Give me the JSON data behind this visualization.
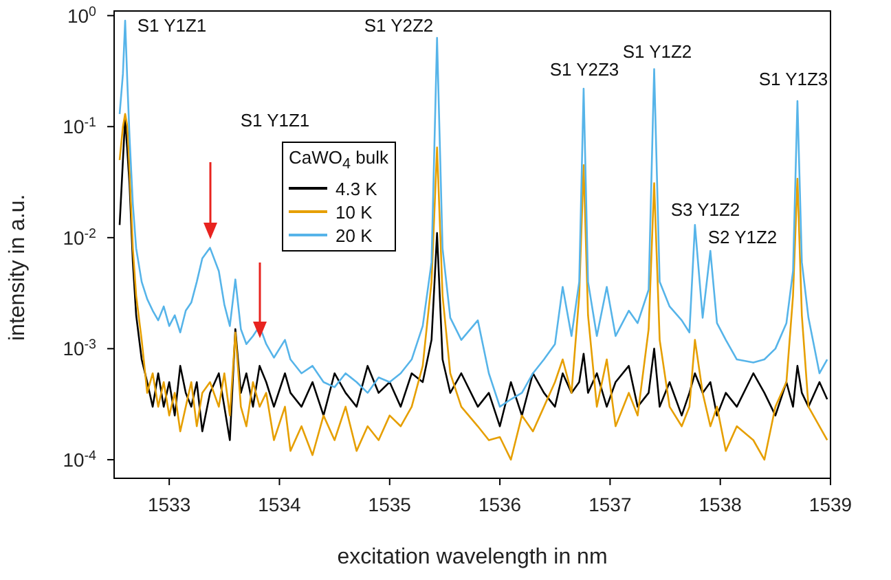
{
  "chart_data": {
    "type": "line",
    "xlabel": "excitation wavelength in nm",
    "ylabel": "intensity in a.u.",
    "legend_title": "CaWO$_{4}$ bulk",
    "legend": "top left",
    "log": "y",
    "grid": false,
    "marker": "none",
    "line_style": "solid",
    "xlim": [
      1532.5,
      1539
    ],
    "xticks": [
      1533,
      1534,
      1535,
      1536,
      1537,
      1538,
      1539
    ],
    "ylim": [
      6.8e-05,
      1.1
    ],
    "yticks": [
      {
        "value": 0.0001,
        "label": "10$^{-4}$"
      },
      {
        "value": 0.001,
        "label": "10$^{-3}$"
      },
      {
        "value": 0.01,
        "label": "10$^{-2}$"
      },
      {
        "value": 0.1,
        "label": "10$^{-1}$"
      },
      {
        "value": 1,
        "label": "10$^{0}$"
      }
    ],
    "x": [
      1532.55,
      1532.58,
      1532.6,
      1532.62,
      1532.64,
      1532.67,
      1532.7,
      1532.75,
      1532.8,
      1532.85,
      1532.9,
      1532.95,
      1533.0,
      1533.05,
      1533.1,
      1533.15,
      1533.2,
      1533.25,
      1533.3,
      1533.37,
      1533.45,
      1533.5,
      1533.55,
      1533.6,
      1533.65,
      1533.7,
      1533.76,
      1533.82,
      1533.88,
      1533.95,
      1534.05,
      1534.1,
      1534.2,
      1534.3,
      1534.4,
      1534.5,
      1534.6,
      1534.7,
      1534.8,
      1534.9,
      1535.0,
      1535.1,
      1535.2,
      1535.3,
      1535.38,
      1535.43,
      1535.48,
      1535.55,
      1535.65,
      1535.8,
      1535.9,
      1536.0,
      1536.1,
      1536.2,
      1536.3,
      1536.4,
      1536.5,
      1536.57,
      1536.65,
      1536.72,
      1536.76,
      1536.8,
      1536.88,
      1536.97,
      1537.05,
      1537.17,
      1537.25,
      1537.35,
      1537.4,
      1537.45,
      1537.54,
      1537.65,
      1537.72,
      1537.77,
      1537.84,
      1537.91,
      1537.97,
      1538.05,
      1538.15,
      1538.3,
      1538.4,
      1538.5,
      1538.6,
      1538.66,
      1538.7,
      1538.74,
      1538.8,
      1538.9,
      1538.97
    ],
    "series": [
      {
        "name": "4.3 K",
        "color": "#000000",
        "values": [
          0.013,
          0.05,
          0.12,
          0.06,
          0.03,
          0.006,
          0.002,
          0.0008,
          0.0005,
          0.0003,
          0.0006,
          0.0003,
          0.0005,
          0.00025,
          0.0007,
          0.0004,
          0.0003,
          0.0005,
          0.00018,
          0.0004,
          0.0006,
          0.0003,
          0.00015,
          0.0015,
          0.0004,
          0.0006,
          0.0003,
          0.0007,
          0.0005,
          0.0003,
          0.0006,
          0.0004,
          0.0003,
          0.0005,
          0.00025,
          0.0006,
          0.0004,
          0.0003,
          0.0007,
          0.0004,
          0.0005,
          0.0003,
          0.0006,
          0.0005,
          0.0012,
          0.011,
          0.0008,
          0.0004,
          0.0006,
          0.0003,
          0.0004,
          0.0002,
          0.0005,
          0.00025,
          0.0006,
          0.0004,
          0.0003,
          0.0006,
          0.0004,
          0.0005,
          0.0009,
          0.0004,
          0.0006,
          0.0003,
          0.0005,
          0.0007,
          0.0003,
          0.0004,
          0.001,
          0.0003,
          0.0005,
          0.00025,
          0.0004,
          0.0006,
          0.0004,
          0.0005,
          0.00025,
          0.0004,
          0.0003,
          0.0006,
          0.0004,
          0.00025,
          0.0005,
          0.0003,
          0.0007,
          0.0004,
          0.0003,
          0.0005,
          0.00035
        ]
      },
      {
        "name": "10 K",
        "color": "#e69f00",
        "values": [
          0.05,
          0.1,
          0.13,
          0.1,
          0.04,
          0.008,
          0.003,
          0.0012,
          0.0004,
          0.0006,
          0.0003,
          0.0005,
          0.00025,
          0.0004,
          0.00018,
          0.0003,
          0.0005,
          0.0002,
          0.0004,
          0.0005,
          0.0003,
          0.0006,
          0.00025,
          0.0014,
          0.0003,
          0.0002,
          0.0005,
          0.0003,
          0.0004,
          0.00015,
          0.0003,
          0.00012,
          0.0002,
          0.00011,
          0.00025,
          0.00015,
          0.0003,
          0.00012,
          0.0002,
          0.00015,
          0.00025,
          0.0002,
          0.0003,
          0.0007,
          0.004,
          0.065,
          0.003,
          0.0006,
          0.0003,
          0.0002,
          0.00015,
          0.00016,
          0.0001,
          0.00025,
          0.00018,
          0.0003,
          0.0005,
          0.0008,
          0.0004,
          0.003,
          0.045,
          0.002,
          0.0003,
          0.0008,
          0.0002,
          0.0004,
          0.00025,
          0.0015,
          0.031,
          0.0012,
          0.0003,
          0.0002,
          0.0003,
          0.0012,
          0.0004,
          0.0002,
          0.0003,
          0.00012,
          0.0002,
          0.00015,
          0.0001,
          0.0003,
          0.0005,
          0.003,
          0.034,
          0.002,
          0.0003,
          0.0002,
          0.00015
        ]
      },
      {
        "name": "20 K",
        "color": "#56b4e9",
        "values": [
          0.13,
          0.3,
          0.9,
          0.25,
          0.08,
          0.02,
          0.008,
          0.004,
          0.0028,
          0.0022,
          0.0018,
          0.0024,
          0.0016,
          0.002,
          0.0014,
          0.0022,
          0.0026,
          0.004,
          0.0065,
          0.0081,
          0.005,
          0.0025,
          0.0016,
          0.0042,
          0.0015,
          0.0011,
          0.0013,
          0.0016,
          0.0011,
          0.00083,
          0.0012,
          0.0008,
          0.0006,
          0.0007,
          0.0005,
          0.00045,
          0.0006,
          0.0005,
          0.0004,
          0.00055,
          0.0005,
          0.0006,
          0.0008,
          0.0016,
          0.006,
          0.63,
          0.008,
          0.0019,
          0.0012,
          0.0018,
          0.0006,
          0.0003,
          0.00035,
          0.0004,
          0.0006,
          0.0008,
          0.0011,
          0.0036,
          0.0013,
          0.004,
          0.22,
          0.004,
          0.0013,
          0.0036,
          0.0013,
          0.0022,
          0.0017,
          0.0034,
          0.33,
          0.004,
          0.0024,
          0.0018,
          0.0014,
          0.013,
          0.0019,
          0.0076,
          0.0017,
          0.0012,
          0.0008,
          0.00075,
          0.0008,
          0.001,
          0.0017,
          0.005,
          0.17,
          0.006,
          0.0019,
          0.0006,
          0.0008
        ]
      }
    ],
    "annotations": [
      "S1 Y1Z1",
      "S1 Y1Z1",
      "S1 Y2Z2",
      "S1 Y2Z3",
      "S1 Y1Z2",
      "S3 Y1Z2",
      "S2 Y1Z2",
      "S1 Y1Z3"
    ]
  }
}
